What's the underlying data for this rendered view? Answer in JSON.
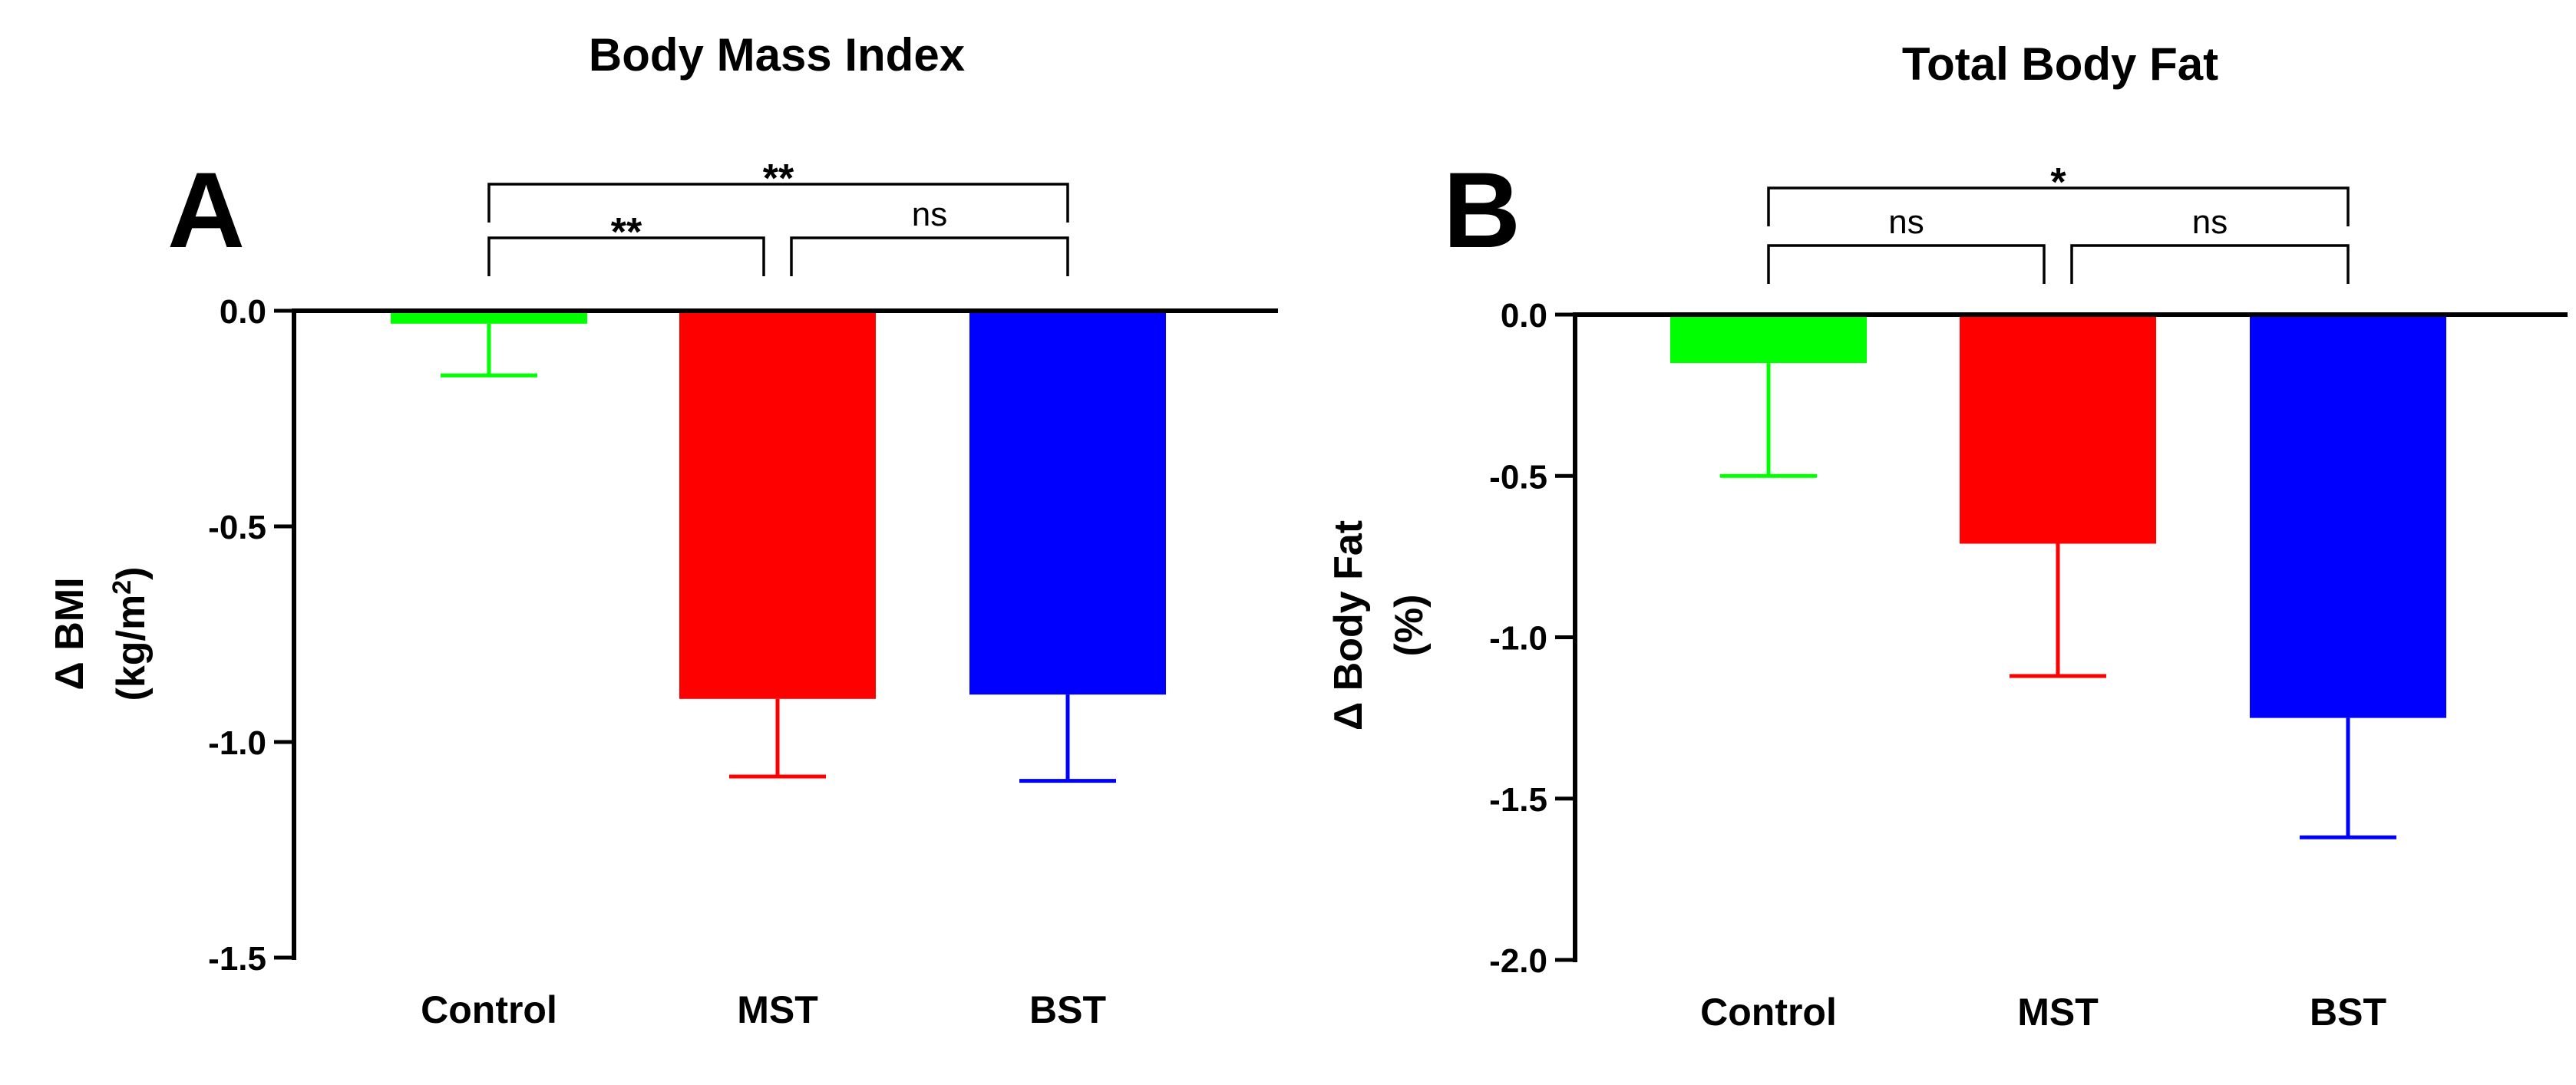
{
  "chart_data": [
    {
      "id": "A",
      "type": "bar",
      "panel_letter": "A",
      "title": "Body Mass Index",
      "ylabel_line1": "Δ BMI",
      "ylabel_line2_prefix": "(kg/m",
      "ylabel_line2_sup": "2",
      "ylabel_line2_suffix": ")",
      "categories": [
        "Control",
        "MST",
        "BST"
      ],
      "values": [
        -0.03,
        -0.9,
        -0.89
      ],
      "errors": [
        0.12,
        0.18,
        0.2
      ],
      "colors": [
        "#00ff00",
        "#ff0000",
        "#0000ff"
      ],
      "ylim": [
        -1.5,
        0
      ],
      "yticks": [
        0.0,
        -0.5,
        -1.0,
        -1.5
      ],
      "ytick_labels": [
        "0.0",
        "-0.5",
        "-1.0",
        "-1.5"
      ],
      "comparisons": [
        {
          "from": 0,
          "to": 1,
          "level": 0,
          "label": "**"
        },
        {
          "from": 1,
          "to": 2,
          "level": 0,
          "label": "ns"
        },
        {
          "from": 0,
          "to": 2,
          "level": 1,
          "label": "**"
        }
      ]
    },
    {
      "id": "B",
      "type": "bar",
      "panel_letter": "B",
      "title": "Total Body Fat",
      "ylabel_line1": "Δ Body Fat",
      "ylabel_line2_prefix": "(%)",
      "ylabel_line2_sup": "",
      "ylabel_line2_suffix": "",
      "categories": [
        "Control",
        "MST",
        "BST"
      ],
      "values": [
        -0.15,
        -0.71,
        -1.25
      ],
      "errors": [
        0.35,
        0.41,
        0.37
      ],
      "colors": [
        "#00ff00",
        "#ff0000",
        "#0000ff"
      ],
      "ylim": [
        -2.0,
        0
      ],
      "yticks": [
        0.0,
        -0.5,
        -1.0,
        -1.5,
        -2.0
      ],
      "ytick_labels": [
        "0.0",
        "-0.5",
        "-1.0",
        "-1.5",
        "-2.0"
      ],
      "comparisons": [
        {
          "from": 0,
          "to": 1,
          "level": 0,
          "label": "ns"
        },
        {
          "from": 1,
          "to": 2,
          "level": 0,
          "label": "ns"
        },
        {
          "from": 0,
          "to": 2,
          "level": 1,
          "label": "*"
        }
      ]
    }
  ]
}
